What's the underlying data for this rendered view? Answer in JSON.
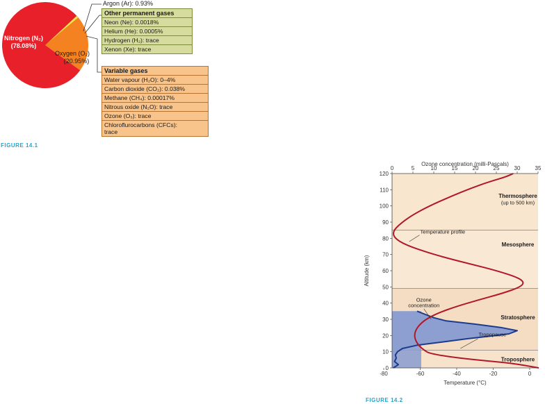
{
  "figure_1": {
    "label": "FIGURE 14.1",
    "argon_label": "Argon (Ar): 0.93%",
    "permanent_box": {
      "title": "Other permanent gases",
      "rows": [
        "Neon (Ne): 0.0018%",
        "Helium (He): 0.0005%",
        "Hydrogen (H₂): trace",
        "Xenon (Xe): trace"
      ]
    },
    "variable_box": {
      "title": "Variable gases",
      "rows": [
        "Water vapour (H₂O): 0–4%",
        "Carbon dioxide (CO₂): 0.038%",
        "Methane (CH₄): 0.00017%",
        "Nitrous oxide (N₂O): trace",
        "Ozone (O₃): trace",
        "Chloroflurocarbons (CFCs): trace"
      ]
    },
    "colors": {
      "nitrogen": "#e8202a",
      "oxygen": "#f58220",
      "argon": "#f6e04b",
      "permanent_box": "#d6dc9e",
      "variable_box": "#f8c48b"
    }
  },
  "figure_2": {
    "label": "FIGURE 14.2",
    "colors": {
      "temperature_line": "#b0182a",
      "ozone_line": "#1c3b8c",
      "ozone_fill": "#8d9fd0",
      "background": "#f7e3cc"
    }
  },
  "chart_data": [
    {
      "type": "pie",
      "slices": [
        {
          "label": "Nitrogen (N₂)",
          "value_label": "(78.08%)",
          "value": 78.08
        },
        {
          "label": "Oxygen (O₂)",
          "value_label": "(20.95%)",
          "value": 20.95
        },
        {
          "label": "Argon (Ar)",
          "value": 0.93
        }
      ]
    },
    {
      "type": "line",
      "xlabel": "Temperature (°C)",
      "x2label": "Ozone concentration (milli-Pascals)",
      "ylabel": "Altitude (km)",
      "xlim": [
        -80,
        0
      ],
      "x2lim": [
        0,
        35
      ],
      "ylim": [
        0,
        120
      ],
      "xticks": [
        -80,
        -60,
        -40,
        -20,
        0
      ],
      "x2ticks": [
        0,
        5,
        10,
        15,
        20,
        25,
        30,
        35
      ],
      "yticks": [
        0,
        10,
        20,
        30,
        40,
        50,
        60,
        70,
        80,
        90,
        100,
        110,
        120
      ],
      "layers": [
        {
          "name": "Troposphere",
          "from": 0,
          "to": 11
        },
        {
          "name": "Stratosphere",
          "from": 11,
          "to": 49
        },
        {
          "name": "Mesosphere",
          "from": 49,
          "to": 85
        },
        {
          "name": "Thermosphere",
          "name2": "(up to 500 km)",
          "from": 85,
          "to": 120
        }
      ],
      "annotations": [
        {
          "text": "Temperature profile",
          "x": -60,
          "y": 83
        },
        {
          "text": "Ozone",
          "text2": "concentration",
          "x": -58,
          "y": 39
        },
        {
          "text": "Tropopause",
          "x": -28,
          "y": 20
        }
      ],
      "series": [
        {
          "name": "Temperature profile",
          "axis": "bottom",
          "points": [
            [
              5,
              0
            ],
            [
              -10,
              3
            ],
            [
              -30,
              5
            ],
            [
              -45,
              7
            ],
            [
              -55,
              9
            ],
            [
              -58,
              11
            ],
            [
              -61,
              14
            ],
            [
              -63,
              18
            ],
            [
              -63,
              22
            ],
            [
              -61,
              26
            ],
            [
              -57,
              30
            ],
            [
              -50,
              34
            ],
            [
              -40,
              38
            ],
            [
              -28,
              42
            ],
            [
              -15,
              46
            ],
            [
              -5,
              50
            ],
            [
              -3,
              53
            ],
            [
              -7,
              56
            ],
            [
              -18,
              60
            ],
            [
              -32,
              64
            ],
            [
              -46,
              68
            ],
            [
              -58,
              72
            ],
            [
              -68,
              76
            ],
            [
              -74,
              80
            ],
            [
              -75,
              84
            ],
            [
              -72,
              88
            ],
            [
              -65,
              94
            ],
            [
              -55,
              100
            ],
            [
              -43,
              106
            ],
            [
              -32,
              111
            ],
            [
              -22,
              115
            ],
            [
              -13,
              118
            ],
            [
              -9,
              120
            ]
          ]
        },
        {
          "name": "Ozone concentration",
          "axis": "top",
          "points": [
            [
              0.3,
              0
            ],
            [
              1.5,
              2
            ],
            [
              0.6,
              4
            ],
            [
              1,
              6
            ],
            [
              0.8,
              8
            ],
            [
              1.3,
              10
            ],
            [
              2.5,
              12
            ],
            [
              6,
              14
            ],
            [
              12,
              16
            ],
            [
              18,
              18
            ],
            [
              25,
              20
            ],
            [
              28,
              21
            ],
            [
              30,
              23
            ],
            [
              26,
              25
            ],
            [
              20,
              27
            ],
            [
              13,
              29
            ],
            [
              10,
              31
            ],
            [
              8,
              33
            ],
            [
              6,
              35
            ]
          ]
        }
      ]
    }
  ]
}
